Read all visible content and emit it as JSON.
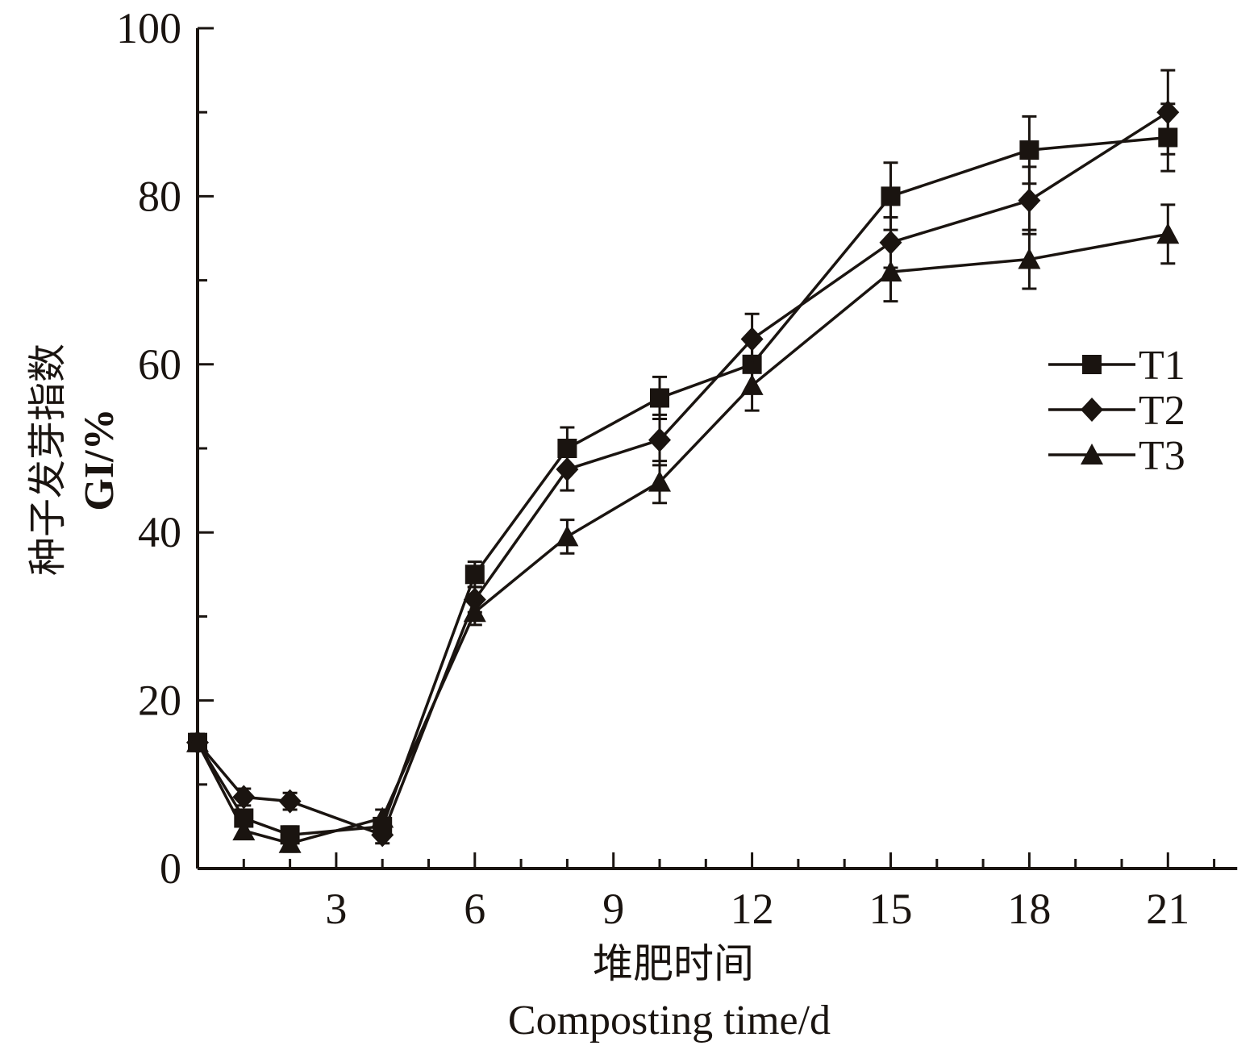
{
  "chart_data": {
    "type": "line",
    "title": "",
    "xlabel_cn": "堆肥时间",
    "xlabel": "Composting time/d",
    "ylabel_cn": "种子发芽指数",
    "ylabel": "GI/%",
    "xlim": [
      0,
      22.5
    ],
    "ylim": [
      0,
      100
    ],
    "xticks": [
      3,
      6,
      9,
      12,
      15,
      18,
      21
    ],
    "yticks": [
      0,
      20,
      40,
      60,
      80,
      100
    ],
    "grid": false,
    "legend_position": "right",
    "x": [
      0,
      1,
      2,
      4,
      6,
      8,
      10,
      12,
      15,
      18,
      21
    ],
    "series": [
      {
        "name": "T1",
        "marker": "square",
        "values": [
          15,
          6,
          4,
          5,
          35,
          50,
          56,
          60,
          80,
          85.5,
          87
        ],
        "errors": [
          1,
          1,
          1,
          1,
          1.5,
          2.5,
          2.5,
          3,
          4,
          4,
          4
        ]
      },
      {
        "name": "T2",
        "marker": "diamond",
        "values": [
          15,
          8.5,
          8,
          4,
          32,
          47.5,
          51,
          63,
          74.5,
          79.5,
          90
        ],
        "errors": [
          1,
          1,
          1,
          1,
          1.5,
          2.5,
          3,
          3,
          3,
          4,
          5
        ]
      },
      {
        "name": "T3",
        "marker": "triangle",
        "values": [
          15,
          4.5,
          3,
          6,
          30.5,
          39.5,
          46,
          57.5,
          71,
          72.5,
          75.5
        ],
        "errors": [
          1,
          1,
          1,
          1,
          1.5,
          2,
          2.5,
          3,
          3.5,
          3.5,
          3.5
        ]
      }
    ],
    "color": "#1a1410"
  }
}
